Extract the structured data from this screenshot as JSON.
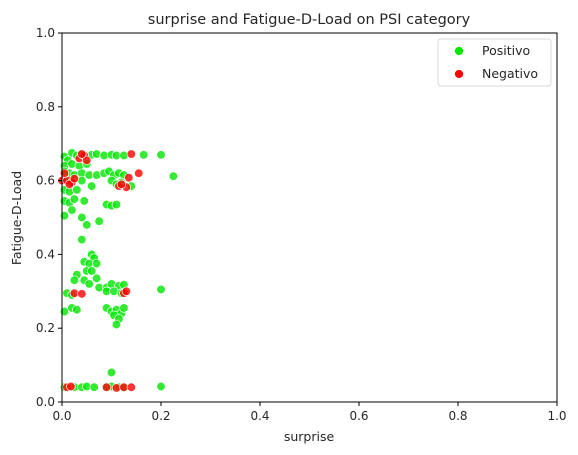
{
  "chart_data": {
    "type": "scatter",
    "title": "surprise and Fatigue-D-Load on PSI category",
    "xlabel": "surprise",
    "ylabel": "Fatigue-D-Load",
    "xlim": [
      0,
      1
    ],
    "ylim": [
      0,
      1
    ],
    "xticks": [
      "0.0",
      "0.2",
      "0.4",
      "0.6",
      "0.8",
      "1.0"
    ],
    "yticks": [
      "0.0",
      "0.2",
      "0.4",
      "0.6",
      "0.8",
      "1.0"
    ],
    "grid": false,
    "legend_position": "top-right",
    "series": [
      {
        "name": "Positivo",
        "color": "#00e600",
        "points": [
          [
            0.005,
            0.665
          ],
          [
            0.012,
            0.655
          ],
          [
            0.02,
            0.675
          ],
          [
            0.03,
            0.668
          ],
          [
            0.04,
            0.672
          ],
          [
            0.06,
            0.67
          ],
          [
            0.07,
            0.672
          ],
          [
            0.085,
            0.668
          ],
          [
            0.1,
            0.67
          ],
          [
            0.11,
            0.668
          ],
          [
            0.125,
            0.668
          ],
          [
            0.165,
            0.67
          ],
          [
            0.2,
            0.67
          ],
          [
            0.005,
            0.64
          ],
          [
            0.02,
            0.645
          ],
          [
            0.035,
            0.64
          ],
          [
            0.05,
            0.645
          ],
          [
            0.005,
            0.625
          ],
          [
            0.015,
            0.62
          ],
          [
            0.025,
            0.615
          ],
          [
            0.04,
            0.62
          ],
          [
            0.055,
            0.615
          ],
          [
            0.07,
            0.615
          ],
          [
            0.085,
            0.62
          ],
          [
            0.095,
            0.625
          ],
          [
            0.105,
            0.615
          ],
          [
            0.115,
            0.62
          ],
          [
            0.125,
            0.615
          ],
          [
            0.225,
            0.612
          ],
          [
            0.005,
            0.6
          ],
          [
            0.015,
            0.595
          ],
          [
            0.04,
            0.6
          ],
          [
            0.1,
            0.6
          ],
          [
            0.12,
            0.595
          ],
          [
            0.005,
            0.575
          ],
          [
            0.015,
            0.57
          ],
          [
            0.03,
            0.575
          ],
          [
            0.06,
            0.585
          ],
          [
            0.11,
            0.59
          ],
          [
            0.14,
            0.585
          ],
          [
            0.005,
            0.545
          ],
          [
            0.015,
            0.54
          ],
          [
            0.025,
            0.55
          ],
          [
            0.045,
            0.545
          ],
          [
            0.09,
            0.535
          ],
          [
            0.1,
            0.532
          ],
          [
            0.11,
            0.535
          ],
          [
            0.005,
            0.505
          ],
          [
            0.02,
            0.52
          ],
          [
            0.04,
            0.5
          ],
          [
            0.05,
            0.48
          ],
          [
            0.075,
            0.49
          ],
          [
            0.04,
            0.44
          ],
          [
            0.06,
            0.4
          ],
          [
            0.065,
            0.39
          ],
          [
            0.045,
            0.38
          ],
          [
            0.055,
            0.375
          ],
          [
            0.07,
            0.375
          ],
          [
            0.05,
            0.355
          ],
          [
            0.03,
            0.345
          ],
          [
            0.06,
            0.355
          ],
          [
            0.025,
            0.33
          ],
          [
            0.045,
            0.33
          ],
          [
            0.07,
            0.335
          ],
          [
            0.055,
            0.32
          ],
          [
            0.075,
            0.31
          ],
          [
            0.09,
            0.31
          ],
          [
            0.1,
            0.32
          ],
          [
            0.115,
            0.315
          ],
          [
            0.125,
            0.318
          ],
          [
            0.09,
            0.3
          ],
          [
            0.105,
            0.3
          ],
          [
            0.12,
            0.295
          ],
          [
            0.2,
            0.305
          ],
          [
            0.01,
            0.295
          ],
          [
            0.02,
            0.29
          ],
          [
            0.09,
            0.255
          ],
          [
            0.1,
            0.245
          ],
          [
            0.11,
            0.25
          ],
          [
            0.12,
            0.24
          ],
          [
            0.125,
            0.255
          ],
          [
            0.105,
            0.235
          ],
          [
            0.115,
            0.225
          ],
          [
            0.11,
            0.21
          ],
          [
            0.005,
            0.245
          ],
          [
            0.02,
            0.255
          ],
          [
            0.03,
            0.25
          ],
          [
            0.1,
            0.08
          ],
          [
            0.005,
            0.04
          ],
          [
            0.025,
            0.04
          ],
          [
            0.04,
            0.04
          ],
          [
            0.05,
            0.042
          ],
          [
            0.065,
            0.04
          ],
          [
            0.09,
            0.04
          ],
          [
            0.1,
            0.042
          ],
          [
            0.115,
            0.04
          ],
          [
            0.125,
            0.038
          ],
          [
            0.2,
            0.042
          ]
        ]
      },
      {
        "name": "Negativo",
        "color": "#ff0000",
        "points": [
          [
            0.0,
            0.6
          ],
          [
            0.01,
            0.6
          ],
          [
            0.02,
            0.595
          ],
          [
            0.005,
            0.62
          ],
          [
            0.015,
            0.59
          ],
          [
            0.025,
            0.605
          ],
          [
            0.035,
            0.66
          ],
          [
            0.045,
            0.668
          ],
          [
            0.05,
            0.655
          ],
          [
            0.04,
            0.672
          ],
          [
            0.14,
            0.672
          ],
          [
            0.155,
            0.62
          ],
          [
            0.135,
            0.608
          ],
          [
            0.115,
            0.585
          ],
          [
            0.13,
            0.582
          ],
          [
            0.12,
            0.59
          ],
          [
            0.025,
            0.295
          ],
          [
            0.04,
            0.293
          ],
          [
            0.125,
            0.295
          ],
          [
            0.13,
            0.3
          ],
          [
            0.01,
            0.04
          ],
          [
            0.018,
            0.042
          ],
          [
            0.09,
            0.04
          ],
          [
            0.11,
            0.038
          ],
          [
            0.125,
            0.04
          ],
          [
            0.14,
            0.04
          ]
        ]
      }
    ]
  }
}
